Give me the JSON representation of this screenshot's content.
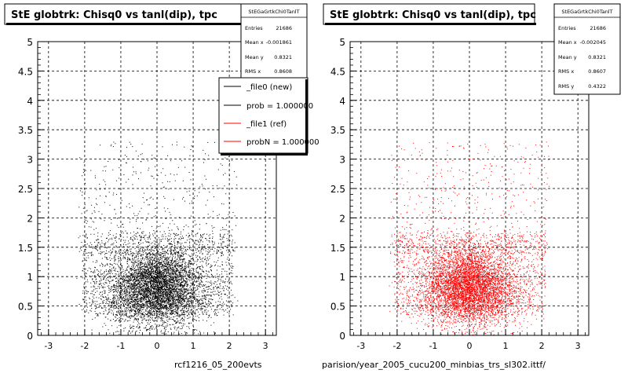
{
  "chart_data": [
    {
      "type": "scatter",
      "title": "StE globtrk: Chisq0 vs tanl(dip), tpc",
      "xlim": [
        -3.3,
        3.3
      ],
      "ylim": [
        0,
        5
      ],
      "x_ticks": [
        "-3",
        "-2",
        "-1",
        "0",
        "1",
        "2",
        "3"
      ],
      "y_ticks": [
        "0",
        "0.5",
        "1",
        "1.5",
        "2",
        "2.5",
        "3",
        "3.5",
        "4",
        "4.5",
        "5"
      ],
      "grid": true,
      "point_color": "#000000",
      "stats": {
        "name": "StEGaGrtkChi0TanlT",
        "rows": [
          {
            "label": "Entries",
            "value": "21686"
          },
          {
            "label": "Mean x",
            "value": "-0.001861"
          },
          {
            "label": "Mean y",
            "value": "0.8321"
          },
          {
            "label": "RMS x",
            "value": "0.8608"
          }
        ]
      },
      "legend": {
        "placement": "top-right",
        "entries": [
          {
            "label": "_file0 (new)",
            "color": "#000000"
          },
          {
            "label": "prob = 1.000000",
            "color": "#000000"
          },
          {
            "label": "_file1 (ref)",
            "color": "#ff0000"
          },
          {
            "label": "probN = 1.000000",
            "color": "#ff0000"
          }
        ]
      },
      "caption": "rcf1216_05_200evts"
    },
    {
      "type": "scatter",
      "title": "StE globtrk: Chisq0 vs tanl(dip), tpc",
      "xlim": [
        -3.3,
        3.3
      ],
      "ylim": [
        0,
        5
      ],
      "x_ticks": [
        "-3",
        "-2",
        "-1",
        "0",
        "1",
        "2",
        "3"
      ],
      "y_ticks": [
        "0",
        "0.5",
        "1",
        "1.5",
        "2",
        "2.5",
        "3",
        "3.5",
        "4",
        "4.5",
        "5"
      ],
      "grid": true,
      "point_color": "#ff0000",
      "stats": {
        "name": "StEGaGrtkChi0TanlT",
        "rows": [
          {
            "label": "Entries",
            "value": "21686"
          },
          {
            "label": "Mean x",
            "value": "-0.002045"
          },
          {
            "label": "Mean y",
            "value": "0.8321"
          },
          {
            "label": "RMS x",
            "value": "0.8607"
          },
          {
            "label": "RMS y",
            "value": "0.4322"
          }
        ]
      },
      "caption": "parision/year_2005_cucu200_minbias_trs_sl302.ittf/"
    }
  ]
}
